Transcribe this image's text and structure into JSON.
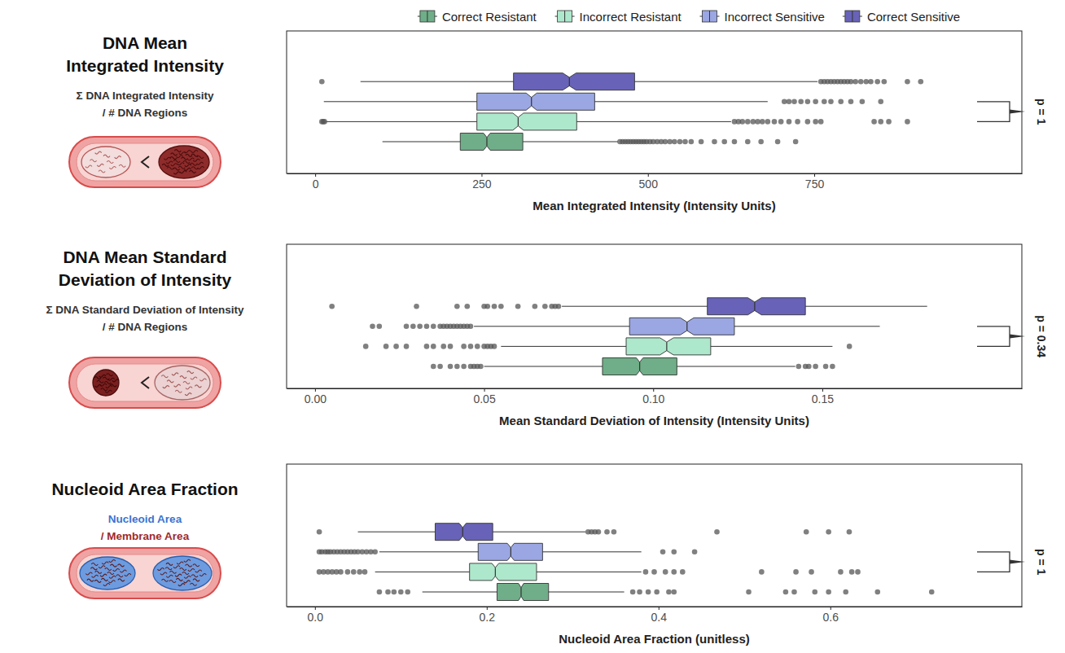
{
  "chart_data": [
    {
      "type": "box",
      "orientation": "horizontal",
      "legend": "top",
      "title": "DNA Mean Integrated Intensity",
      "subtitle": [
        "Σ DNA Integrated Intensity",
        "/ # DNA Regions"
      ],
      "x_label": "Mean Integrated Intensity (Intensity Units)",
      "xlim": [
        -43,
        1062
      ],
      "xticks": [
        0,
        250,
        500,
        750
      ],
      "series": [
        {
          "name": "Correct Resistant",
          "color": "#6fae88",
          "whisker_low": 101,
          "q1": 218,
          "notch_low": 253,
          "median": 258,
          "notch_high": 263,
          "q3": 312,
          "whisker_high": 455,
          "outliers": [
            458,
            462,
            466,
            470,
            474,
            478,
            482,
            486,
            490,
            494,
            498,
            503,
            508,
            514,
            520,
            526,
            533,
            540,
            548,
            556,
            565,
            580,
            600,
            615,
            630,
            650,
            670,
            695,
            722
          ]
        },
        {
          "name": "Incorrect Resistant",
          "color": "#aee8cc",
          "whisker_low": 16,
          "q1": 243,
          "notch_low": 297,
          "median": 305,
          "notch_high": 313,
          "q3": 393,
          "whisker_high": 625,
          "outliers": [
            10,
            12,
            14,
            630,
            636,
            642,
            650,
            658,
            665,
            672,
            680,
            690,
            700,
            712,
            725,
            740,
            752,
            760,
            840,
            850,
            862,
            890
          ]
        },
        {
          "name": "Incorrect Sensitive",
          "color": "#9ba7e3",
          "whisker_low": 13,
          "q1": 243,
          "notch_low": 317,
          "median": 325,
          "notch_high": 333,
          "q3": 420,
          "whisker_high": 680,
          "outliers": [
            705,
            712,
            720,
            730,
            740,
            752,
            765,
            775,
            790,
            805,
            822,
            850
          ]
        },
        {
          "name": "Correct Sensitive",
          "color": "#6863b8",
          "whisker_low": 68,
          "q1": 298,
          "notch_low": 372,
          "median": 382,
          "notch_high": 392,
          "q3": 480,
          "whisker_high": 755,
          "outliers": [
            10,
            760,
            765,
            770,
            775,
            780,
            785,
            790,
            795,
            800,
            805,
            812,
            820,
            828,
            835,
            845,
            855,
            890,
            910
          ]
        }
      ],
      "annotations": [
        {
          "text": "p = 1",
          "between": [
            "Incorrect Resistant",
            "Incorrect Sensitive"
          ]
        }
      ]
    },
    {
      "type": "box",
      "orientation": "horizontal",
      "title": "DNA Mean Standard Deviation of Intensity",
      "subtitle": [
        "Σ DNA Standard Deviation of Intensity",
        "/ # DNA Regions"
      ],
      "x_label": "Mean Standard Deviation of Intensity (Intensity Units)",
      "xlim": [
        -0.0084,
        0.209
      ],
      "xticks": [
        {
          "value": 0,
          "label": "0.00"
        },
        {
          "value": 0.05,
          "label": "0.05"
        },
        {
          "value": 0.1,
          "label": "0.10"
        },
        {
          "value": 0.15,
          "label": "0.15"
        }
      ],
      "series": [
        {
          "name": "Correct Resistant",
          "color": "#6fae88",
          "whisker_low": 0.05,
          "q1": 0.085,
          "notch_low": 0.095,
          "median": 0.096,
          "notch_high": 0.097,
          "q3": 0.107,
          "whisker_high": 0.142,
          "outliers": [
            0.035,
            0.037,
            0.04,
            0.042,
            0.044,
            0.046,
            0.047,
            0.048,
            0.049,
            0.143,
            0.145,
            0.146,
            0.148,
            0.151,
            0.153
          ]
        },
        {
          "name": "Incorrect Resistant",
          "color": "#aee8cc",
          "whisker_low": 0.055,
          "q1": 0.092,
          "notch_low": 0.102,
          "median": 0.104,
          "notch_high": 0.106,
          "q3": 0.117,
          "whisker_high": 0.153,
          "outliers": [
            0.015,
            0.021,
            0.024,
            0.027,
            0.033,
            0.035,
            0.038,
            0.04,
            0.044,
            0.046,
            0.048,
            0.05,
            0.051,
            0.052,
            0.053,
            0.158
          ]
        },
        {
          "name": "Incorrect Sensitive",
          "color": "#9ba7e3",
          "whisker_low": 0.047,
          "q1": 0.093,
          "notch_low": 0.108,
          "median": 0.11,
          "notch_high": 0.112,
          "q3": 0.124,
          "whisker_high": 0.167,
          "outliers": [
            0.017,
            0.019,
            0.027,
            0.029,
            0.031,
            0.033,
            0.035,
            0.037,
            0.038,
            0.039,
            0.04,
            0.041,
            0.042,
            0.043,
            0.044,
            0.045,
            0.046
          ]
        },
        {
          "name": "Correct Sensitive",
          "color": "#6863b8",
          "whisker_low": 0.073,
          "q1": 0.116,
          "notch_low": 0.128,
          "median": 0.13,
          "notch_high": 0.132,
          "q3": 0.145,
          "whisker_high": 0.181,
          "outliers": [
            0.005,
            0.03,
            0.042,
            0.045,
            0.05,
            0.051,
            0.053,
            0.055,
            0.06,
            0.065,
            0.068,
            0.07,
            0.071,
            0.072
          ]
        }
      ],
      "annotations": [
        {
          "text": "p = 0.34",
          "between": [
            "Incorrect Resistant",
            "Incorrect Sensitive"
          ]
        }
      ]
    },
    {
      "type": "box",
      "orientation": "horizontal",
      "title": "Nucleoid Area Fraction",
      "subtitle": [
        "Nucleoid Area",
        "/ Membrane Area"
      ],
      "x_label": "Nucleoid Area Fraction (unitless)",
      "xlim": [
        -0.033,
        0.823
      ],
      "xticks": [
        {
          "value": 0,
          "label": "0.0"
        },
        {
          "value": 0.2,
          "label": "0.2"
        },
        {
          "value": 0.4,
          "label": "0.4"
        },
        {
          "value": 0.6,
          "label": "0.6"
        }
      ],
      "series": [
        {
          "name": "Correct Resistant",
          "color": "#6fae88",
          "whisker_low": 0.125,
          "q1": 0.212,
          "notch_low": 0.237,
          "median": 0.24,
          "notch_high": 0.243,
          "q3": 0.272,
          "whisker_high": 0.36,
          "outliers": [
            0.075,
            0.085,
            0.092,
            0.1,
            0.108,
            0.37,
            0.378,
            0.388,
            0.398,
            0.412,
            0.418,
            0.505,
            0.548,
            0.558,
            0.582,
            0.598,
            0.618,
            0.655,
            0.718
          ]
        },
        {
          "name": "Incorrect Resistant",
          "color": "#aee8cc",
          "whisker_low": 0.07,
          "q1": 0.18,
          "notch_low": 0.206,
          "median": 0.21,
          "notch_high": 0.214,
          "q3": 0.258,
          "whisker_high": 0.38,
          "outliers": [
            0.005,
            0.01,
            0.015,
            0.02,
            0.025,
            0.03,
            0.038,
            0.045,
            0.052,
            0.058,
            0.385,
            0.395,
            0.408,
            0.418,
            0.428,
            0.52,
            0.56,
            0.578,
            0.612,
            0.625,
            0.632
          ]
        },
        {
          "name": "Incorrect Sensitive",
          "color": "#9ba7e3",
          "whisker_low": 0.075,
          "q1": 0.19,
          "notch_low": 0.224,
          "median": 0.228,
          "notch_high": 0.232,
          "q3": 0.265,
          "whisker_high": 0.38,
          "outliers": [
            0.005,
            0.008,
            0.012,
            0.015,
            0.018,
            0.022,
            0.026,
            0.03,
            0.034,
            0.038,
            0.042,
            0.046,
            0.05,
            0.055,
            0.06,
            0.065,
            0.07,
            0.405,
            0.418,
            0.442
          ]
        },
        {
          "name": "Correct Sensitive",
          "color": "#6863b8",
          "whisker_low": 0.05,
          "q1": 0.14,
          "notch_low": 0.168,
          "median": 0.172,
          "notch_high": 0.176,
          "q3": 0.207,
          "whisker_high": 0.315,
          "outliers": [
            0.005,
            0.318,
            0.322,
            0.326,
            0.33,
            0.34,
            0.348,
            0.468,
            0.572,
            0.598,
            0.622
          ]
        }
      ],
      "annotations": [
        {
          "text": "p = 1",
          "between": [
            "Incorrect Resistant",
            "Incorrect Sensitive"
          ]
        }
      ]
    }
  ]
}
